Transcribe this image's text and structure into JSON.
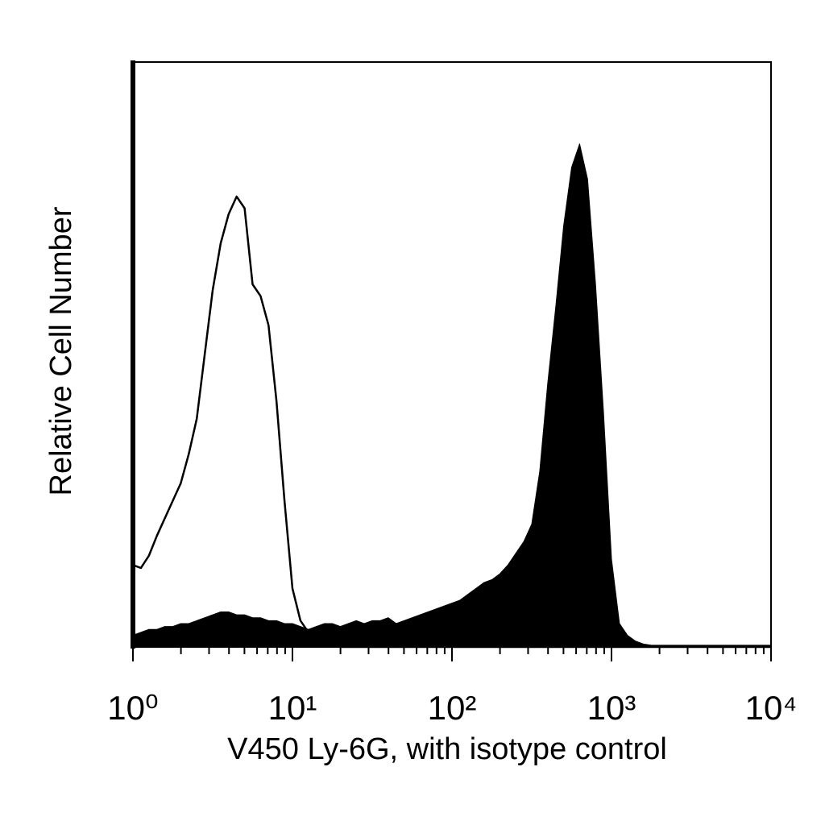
{
  "chart_data": {
    "type": "histogram-overlay",
    "xlabel": "V450 Ly-6G, with isotype control",
    "ylabel": "Relative Cell Number",
    "xscale": "log",
    "xlim": [
      1,
      10000
    ],
    "ylim": [
      0,
      100
    ],
    "xticks": [
      {
        "value": 1,
        "label": "10⁰"
      },
      {
        "value": 10,
        "label": "10¹"
      },
      {
        "value": 100,
        "label": "10²"
      },
      {
        "value": 1000,
        "label": "10³"
      },
      {
        "value": 10000,
        "label": "10⁴"
      }
    ],
    "xminorticks": [
      2,
      3,
      4,
      5,
      6,
      7,
      8,
      9,
      20,
      30,
      40,
      50,
      60,
      70,
      80,
      90,
      200,
      300,
      400,
      500,
      600,
      700,
      800,
      900,
      2000,
      3000,
      4000,
      5000,
      6000,
      7000,
      8000,
      9000
    ],
    "x": [
      1,
      1.122,
      1.259,
      1.413,
      1.585,
      1.778,
      1.995,
      2.239,
      2.512,
      2.818,
      3.162,
      3.548,
      3.981,
      4.467,
      5.012,
      5.623,
      6.31,
      7.079,
      7.943,
      8.913,
      10,
      11.22,
      12.59,
      14.13,
      15.85,
      17.78,
      19.95,
      22.39,
      25.12,
      28.18,
      31.62,
      35.48,
      39.81,
      44.67,
      50.12,
      56.23,
      63.1,
      70.79,
      79.43,
      89.13,
      100,
      112.2,
      125.9,
      141.3,
      158.5,
      177.8,
      199.5,
      223.9,
      251.2,
      281.8,
      316.2,
      354.8,
      398.1,
      446.7,
      501.2,
      562.3,
      631,
      707.9,
      794.3,
      891.3,
      1000,
      1122,
      1259,
      1413,
      1585,
      1778,
      1995,
      2239,
      2512,
      2818,
      3162,
      3548,
      3981,
      4467,
      5012,
      5623,
      6310,
      7079,
      7943,
      8913,
      10000
    ],
    "series": [
      {
        "color": "#000000",
        "fill": true,
        "values": [
          2,
          2.5,
          3,
          3,
          3.5,
          3.5,
          4,
          4,
          4.5,
          5,
          5.5,
          6,
          6,
          5.5,
          5.5,
          5,
          5,
          4.5,
          4.5,
          4,
          4,
          3.5,
          3,
          3.5,
          4,
          4,
          3.5,
          4,
          4.5,
          4,
          4.5,
          4.5,
          5,
          4,
          4.5,
          5,
          5.5,
          6,
          6.5,
          7,
          7.5,
          8,
          9,
          10,
          11,
          11.5,
          12.5,
          14,
          16,
          18,
          21,
          30,
          45,
          58,
          72,
          82,
          86,
          80,
          62,
          40,
          15,
          4,
          2,
          1,
          0.5,
          0.3,
          0.3,
          0.3,
          0.3,
          0.3,
          0.3,
          0.3,
          0.3,
          0.3,
          0.3,
          0.3,
          0.3,
          0.3,
          0.3,
          0.3,
          0.3
        ]
      },
      {
        "color": "#000000",
        "fill": false,
        "values": [
          14,
          13.5,
          15.6,
          19,
          22,
          25,
          28,
          33,
          39,
          50,
          61,
          69,
          74,
          77,
          75,
          62,
          60,
          55,
          42,
          25,
          10,
          4.5,
          2.5,
          1.5,
          1,
          0.5,
          0,
          0,
          0,
          0,
          0,
          0,
          0,
          0,
          0,
          0,
          0,
          0,
          0,
          0,
          0,
          0,
          0,
          0,
          0,
          0,
          0,
          0,
          0,
          0,
          0,
          0,
          0,
          0,
          0,
          0,
          0,
          0,
          0,
          0,
          0,
          0,
          0,
          0,
          0,
          0,
          0,
          0,
          0,
          0,
          0,
          0,
          0,
          0,
          0,
          0,
          0,
          0,
          0,
          0,
          0
        ]
      }
    ]
  }
}
